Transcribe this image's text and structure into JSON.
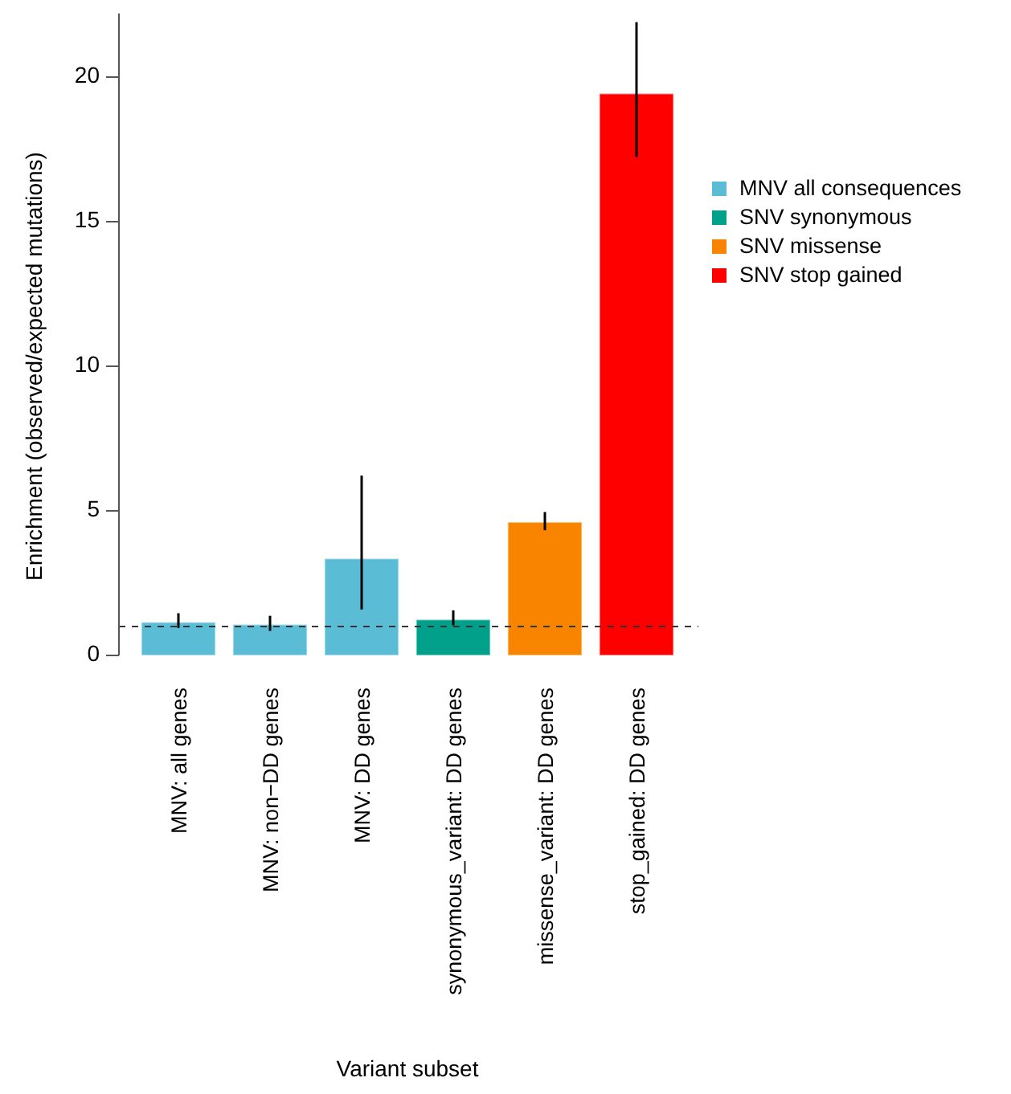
{
  "chart_data": {
    "type": "bar",
    "xlabel": "Variant subset",
    "ylabel": "Enrichment (observed/expected mutations)",
    "categories": [
      "MNV: all genes",
      "MNV: non−DD genes",
      "MNV: DD genes",
      "synonymous_variant: DD genes",
      "missense_variant: DD genes",
      "stop_gained: DD genes"
    ],
    "stacked": true,
    "series": [
      {
        "name": "MNV all consequences",
        "color": "#5bbcd6",
        "values": [
          1.15,
          1.07,
          3.35,
          null,
          null,
          null
        ],
        "errors": [
          [
            0.95,
            1.46
          ],
          [
            0.85,
            1.37
          ],
          [
            1.59,
            6.22
          ],
          null,
          null,
          null
        ]
      },
      {
        "name": "SNV synonymous",
        "color": "#00a08a",
        "values": [
          null,
          null,
          null,
          1.24,
          null,
          null
        ],
        "errors": [
          null,
          null,
          null,
          [
            1.04,
            1.56
          ],
          null,
          null
        ]
      },
      {
        "name": "SNV missense",
        "color": "#f98400",
        "values": [
          null,
          null,
          null,
          null,
          4.61,
          null
        ],
        "errors": [
          null,
          null,
          null,
          null,
          [
            4.33,
            4.96
          ],
          null
        ]
      },
      {
        "name": "SNV stop gained",
        "color": "#ff0000",
        "values": [
          null,
          null,
          null,
          null,
          null,
          19.43
        ],
        "errors": [
          null,
          null,
          null,
          null,
          null,
          [
            17.24,
            21.9
          ]
        ]
      }
    ],
    "ylim": [
      0,
      22.2
    ],
    "yticks": [
      0,
      5,
      10,
      15,
      20
    ],
    "ref_lines": [
      {
        "axis": "y",
        "value": 1,
        "color": "#333333",
        "line_style": "dashed"
      }
    ],
    "legend": "right",
    "grid": false
  }
}
